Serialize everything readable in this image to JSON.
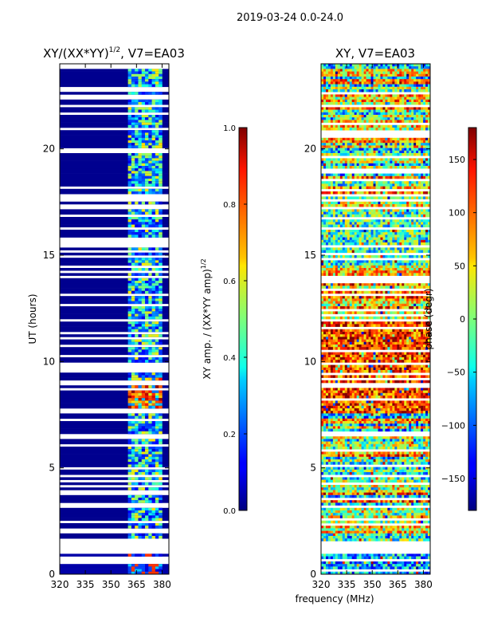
{
  "figure": {
    "suptitle": "2019-03-24 0.0-24.0",
    "xlabel": "frequency (MHz)"
  },
  "chart_data": [
    {
      "type": "heatmap",
      "title": "XY/(XX*YY)",
      "title_sup": "1/2",
      "title_suffix": ", V7=EA03",
      "xlabel": "",
      "ylabel": "UT (hours)",
      "xlim": [
        320,
        384
      ],
      "ylim": [
        0,
        24
      ],
      "xticks": [
        "320",
        "335",
        "350",
        "365",
        "380"
      ],
      "xtick_values": [
        320,
        335,
        350,
        365,
        380
      ],
      "yticks": [
        "0",
        "5",
        "10",
        "15",
        "20"
      ],
      "ytick_values": [
        0,
        5,
        10,
        15,
        20
      ],
      "colorbar": {
        "label_prefix": "XY amp. / (XX*YY amp)",
        "label_sup": "1/2",
        "range": [
          0.0,
          1.0
        ],
        "ticks": [
          "0.0",
          "0.2",
          "0.4",
          "0.6",
          "0.8",
          "1.0"
        ],
        "tick_values": [
          0.0,
          0.2,
          0.4,
          0.6,
          0.8,
          1.0
        ],
        "colormap": "jet"
      },
      "active_band_mhz": [
        361,
        379
      ],
      "elevated_amplitude_hours": [
        7.6,
        9.2
      ]
    },
    {
      "type": "heatmap",
      "title": "XY, V7=EA03",
      "xlabel": "frequency (MHz)",
      "ylabel": "",
      "xlim": [
        320,
        384
      ],
      "ylim": [
        0,
        24
      ],
      "xticks": [
        "320",
        "335",
        "350",
        "365",
        "380"
      ],
      "xtick_values": [
        320,
        335,
        350,
        365,
        380
      ],
      "yticks": [
        "0",
        "5",
        "10",
        "15",
        "20"
      ],
      "ytick_values": [
        0,
        5,
        10,
        15,
        20
      ],
      "colorbar": {
        "label": "phase (degr)",
        "range": [
          -180,
          180
        ],
        "ticks": [
          "−150",
          "−100",
          "−50",
          "0",
          "50",
          "100",
          "150"
        ],
        "tick_values": [
          -150,
          -100,
          -50,
          0,
          50,
          100,
          150
        ],
        "colormap": "jet"
      }
    }
  ]
}
